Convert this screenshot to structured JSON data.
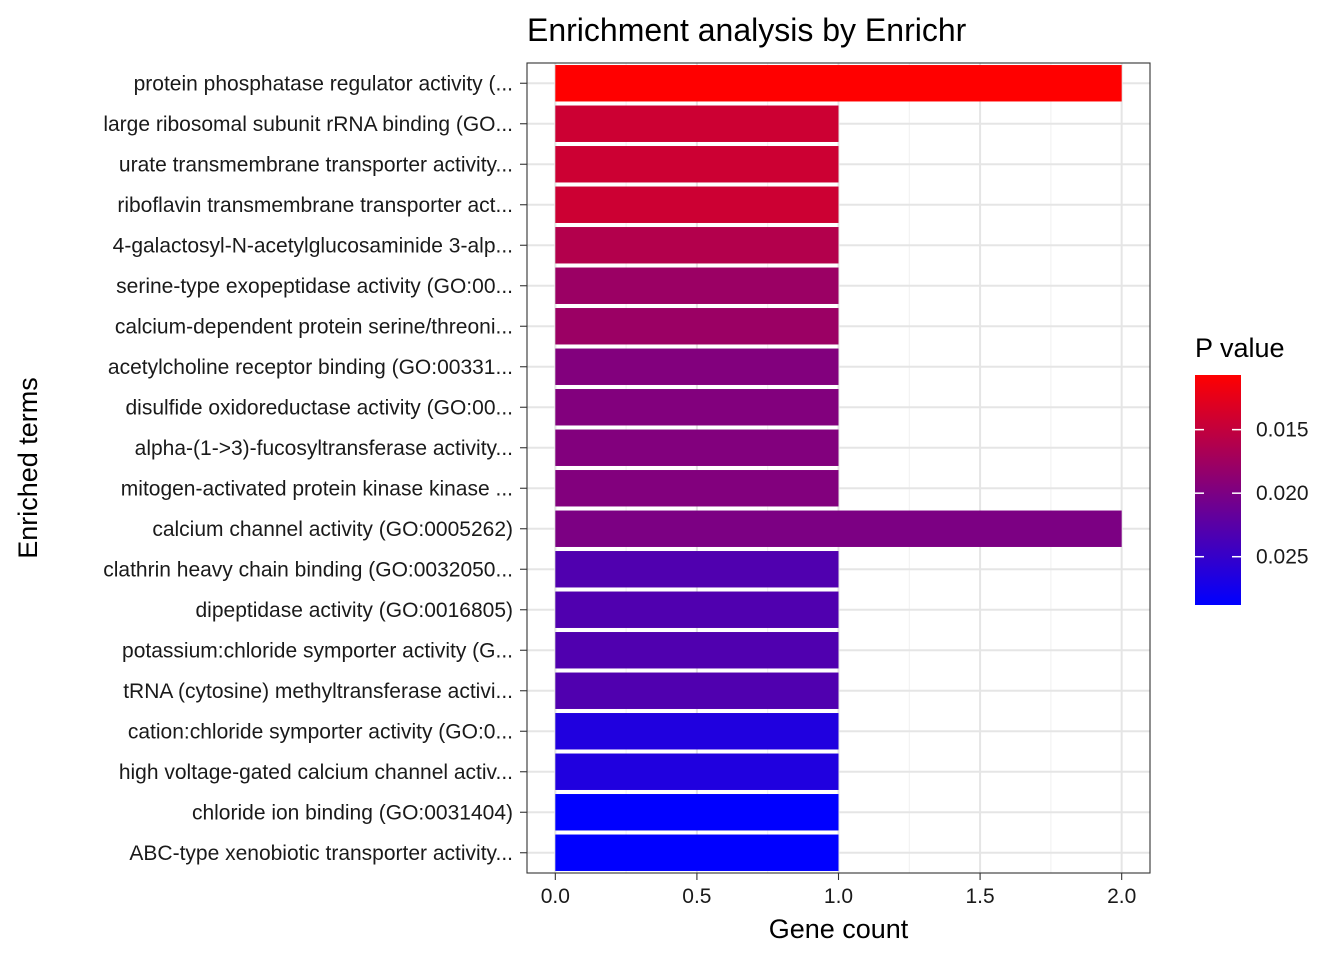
{
  "chart_data": {
    "type": "bar",
    "orientation": "horizontal",
    "title": "Enrichment analysis by Enrichr",
    "xlabel": "Gene count",
    "ylabel": "Enriched terms",
    "xlim": [
      -0.1,
      2.1
    ],
    "xticks": [
      0.0,
      0.5,
      1.0,
      1.5,
      2.0
    ],
    "xtick_labels": [
      "0.0",
      "0.5",
      "1.0",
      "1.5",
      "2.0"
    ],
    "grid": true,
    "legend": {
      "title": "P value",
      "position": "right",
      "range": [
        0.0107,
        0.0288
      ],
      "ticks": [
        0.015,
        0.02,
        0.025
      ],
      "tick_labels": [
        "0.015",
        "0.020",
        "0.025"
      ],
      "low_color": "#ff0000",
      "high_color": "#0000ff"
    },
    "categories": [
      "protein phosphatase regulator activity (...",
      "large ribosomal subunit rRNA binding (GO...",
      "urate transmembrane transporter activity...",
      "riboflavin transmembrane transporter act...",
      "4-galactosyl-N-acetylglucosaminide 3-alp...",
      "serine-type exopeptidase activity (GO:00...",
      "calcium-dependent protein serine/threoni...",
      "acetylcholine receptor binding (GO:00331...",
      "disulfide oxidoreductase activity (GO:00...",
      "alpha-(1->3)-fucosyltransferase activity...",
      "mitogen-activated protein kinase kinase ...",
      "calcium channel activity (GO:0005262)",
      "clathrin heavy chain binding (GO:0032050...",
      "dipeptidase activity (GO:0016805)",
      "potassium:chloride symporter activity (G...",
      "tRNA (cytosine) methyltransferase activi...",
      "cation:chloride symporter activity (GO:0...",
      "high voltage-gated calcium channel activ...",
      "chloride ion binding (GO:0031404)",
      "ABC-type xenobiotic transporter activity..."
    ],
    "values": [
      2,
      1,
      1,
      1,
      1,
      1,
      1,
      1,
      1,
      1,
      1,
      2,
      1,
      1,
      1,
      1,
      1,
      1,
      1,
      1
    ],
    "p_values": [
      0.0107,
      0.0143,
      0.0143,
      0.0143,
      0.0161,
      0.0178,
      0.0178,
      0.0196,
      0.0196,
      0.0196,
      0.0196,
      0.02,
      0.0231,
      0.0231,
      0.0231,
      0.0231,
      0.0265,
      0.0265,
      0.0288,
      0.0288
    ]
  }
}
